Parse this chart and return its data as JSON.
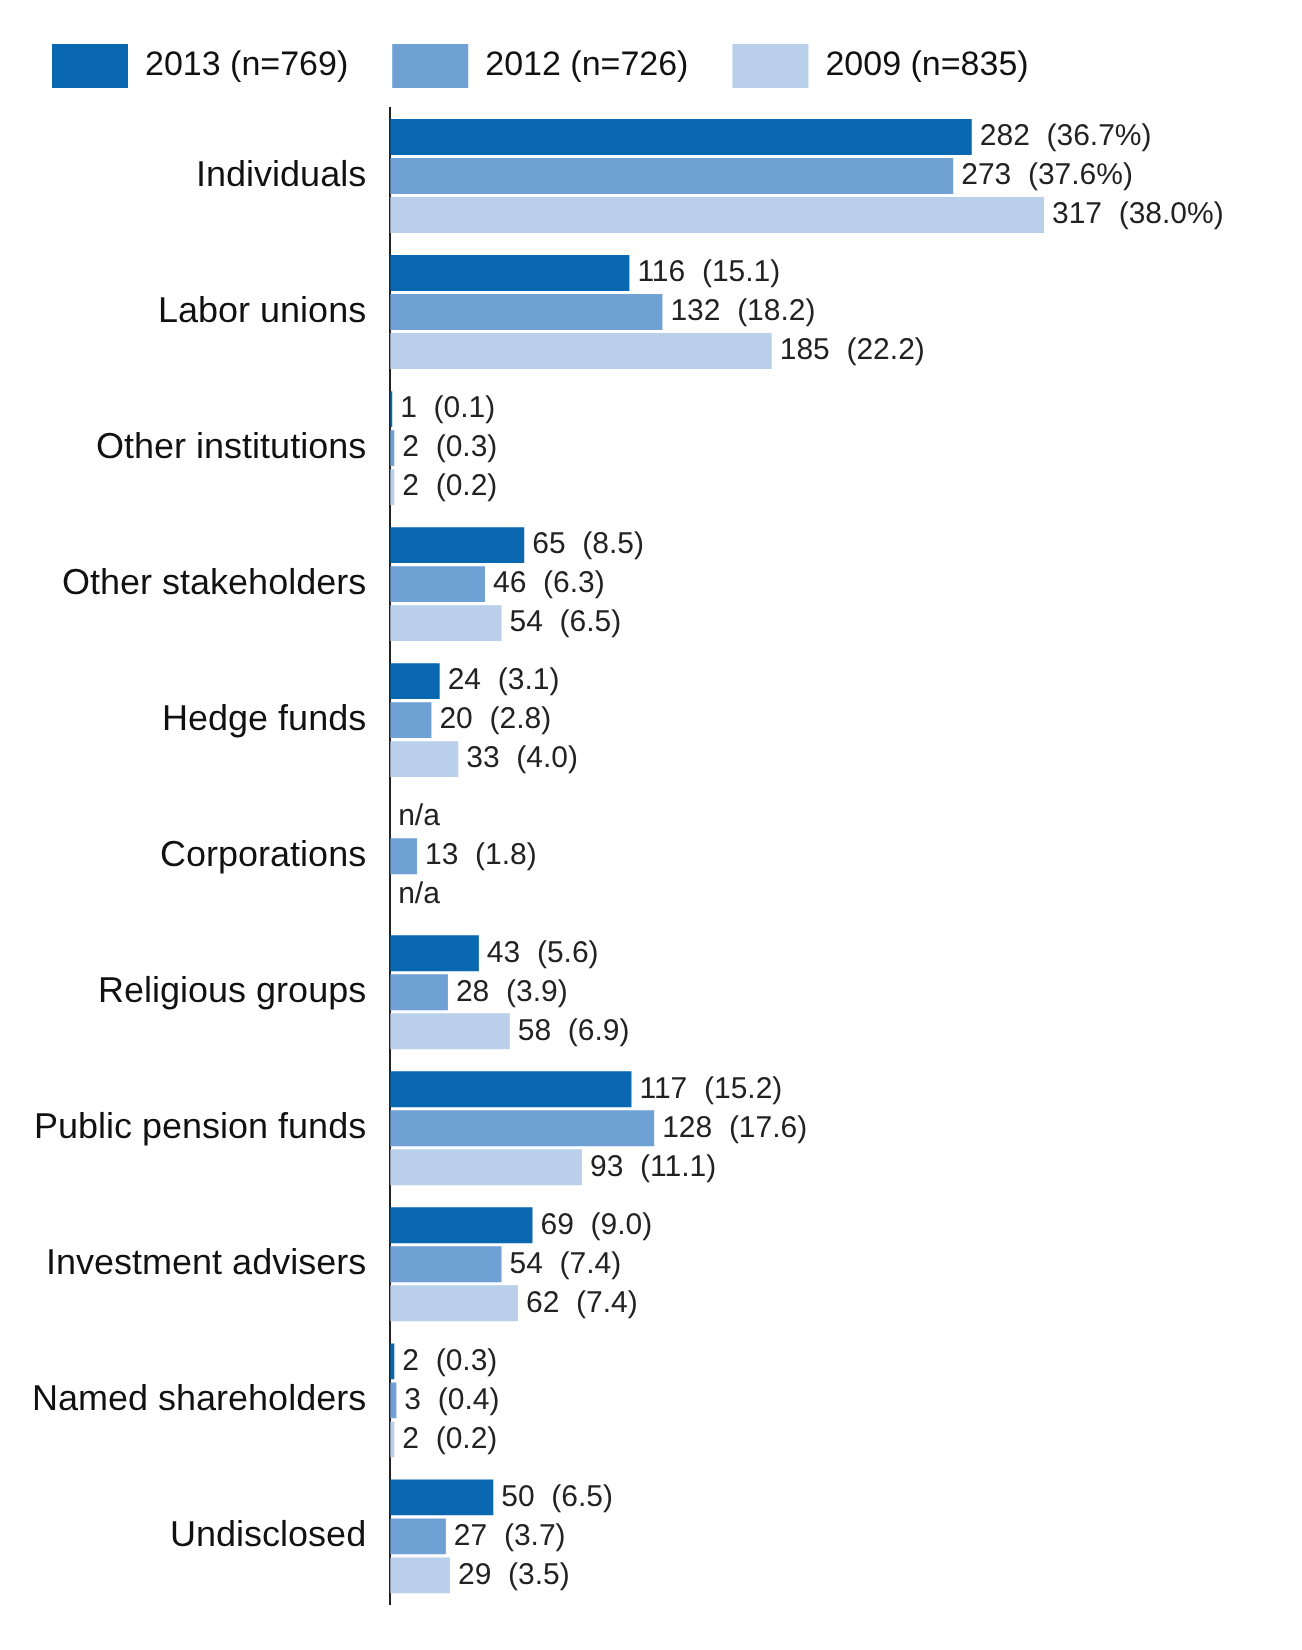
{
  "chart_data": {
    "type": "bar",
    "orientation": "horizontal",
    "legend": "top left",
    "tick_labels": "y",
    "grid": false,
    "categories": [
      "Individuals",
      "Labor unions",
      "Other institutions",
      "Other stakeholders",
      "Hedge funds",
      "Corporations",
      "Religious groups",
      "Public pension funds",
      "Investment advisers",
      "Named shareholders",
      "Undisclosed"
    ],
    "series": [
      {
        "name": "2013 (n=769)",
        "color": "#0a68b0",
        "values": [
          282,
          116,
          1,
          65,
          24,
          null,
          43,
          117,
          69,
          2,
          50
        ],
        "value_labels": [
          "282  (36.7%)",
          "116  (15.1)",
          "1  (0.1)",
          "65  (8.5)",
          "24  (3.1)",
          "n/a",
          "43  (5.6)",
          "117  (15.2)",
          "69  (9.0)",
          "2  (0.3)",
          "50  (6.5)"
        ]
      },
      {
        "name": "2012 (n=726)",
        "color": "#6fa1d4",
        "values": [
          273,
          132,
          2,
          46,
          20,
          13,
          28,
          128,
          54,
          3,
          27
        ],
        "value_labels": [
          "273  (37.6%)",
          "132  (18.2)",
          "2  (0.3)",
          "46  (6.3)",
          "20  (2.8)",
          "13  (1.8)",
          "28  (3.9)",
          "128  (17.6)",
          "54  (7.4)",
          "3  (0.4)",
          "27  (3.7)"
        ]
      },
      {
        "name": "2009 (n=835)",
        "color": "#b9cfea",
        "values": [
          317,
          185,
          2,
          54,
          33,
          null,
          58,
          93,
          62,
          2,
          29
        ],
        "value_labels": [
          "317  (38.0%)",
          "185  (22.2)",
          "2  (0.2)",
          "54  (6.5)",
          "33  (4.0)",
          "n/a",
          "58  (6.9)",
          "93  (11.1)",
          "62  (7.4)",
          "2  (0.2)",
          "29  (3.5)"
        ]
      }
    ]
  }
}
